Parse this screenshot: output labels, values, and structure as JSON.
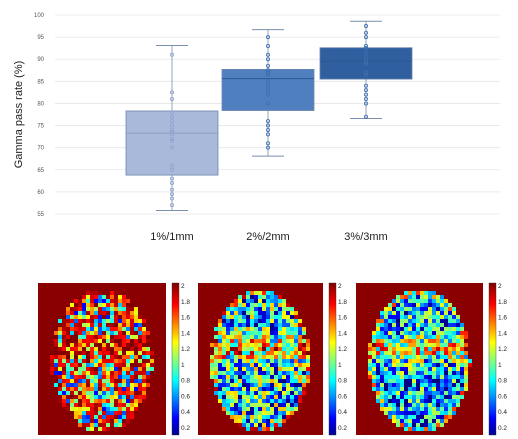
{
  "chart_data": [
    {
      "type": "box",
      "ylabel": "Gamma pass rate (%)",
      "ylim": [
        55,
        100
      ],
      "yticks": [
        55,
        60,
        65,
        70,
        75,
        80,
        85,
        90,
        95,
        100
      ],
      "categories": [
        "1%/1mm",
        "2%/2mm",
        "3%/3mm"
      ],
      "boxes": [
        {
          "name": "1%/1mm",
          "color": "#a9b9d9",
          "min": 55.8,
          "q1": 63.8,
          "median": 73.3,
          "q3": 78.3,
          "max": 93.1,
          "points": [
            91,
            82.5,
            81,
            78,
            77,
            76,
            75,
            74,
            73.5,
            73,
            72,
            71.5,
            70,
            66,
            65,
            63,
            62,
            60.5,
            59.5,
            58.5,
            57
          ]
        },
        {
          "name": "2%/2mm",
          "color": "#4f7fbf",
          "min": 68.1,
          "q1": 78.4,
          "median": 85.6,
          "q3": 87.7,
          "max": 96.7,
          "points": [
            95,
            93,
            91,
            90,
            88.5,
            87.5,
            87,
            86.5,
            85,
            84,
            83,
            82,
            80,
            76,
            75,
            74,
            73,
            71,
            70
          ]
        },
        {
          "name": "3%/3mm",
          "color": "#2f5f9f",
          "min": 76.6,
          "q1": 85.5,
          "median": 89.5,
          "q3": 92.6,
          "max": 98.6,
          "points": [
            97.5,
            96,
            95,
            93,
            92.5,
            91.5,
            90.5,
            89.5,
            89,
            87,
            86.5,
            84,
            83,
            82,
            81,
            80,
            77
          ]
        }
      ]
    },
    {
      "type": "heatmap",
      "panels": 3,
      "colorbar": {
        "range": [
          0,
          2
        ],
        "ticks": [
          "2",
          "1.8",
          "1.6",
          "1.4",
          "1.2",
          "1",
          "0.8",
          "0.6",
          "0.4",
          "0.2"
        ]
      }
    }
  ]
}
